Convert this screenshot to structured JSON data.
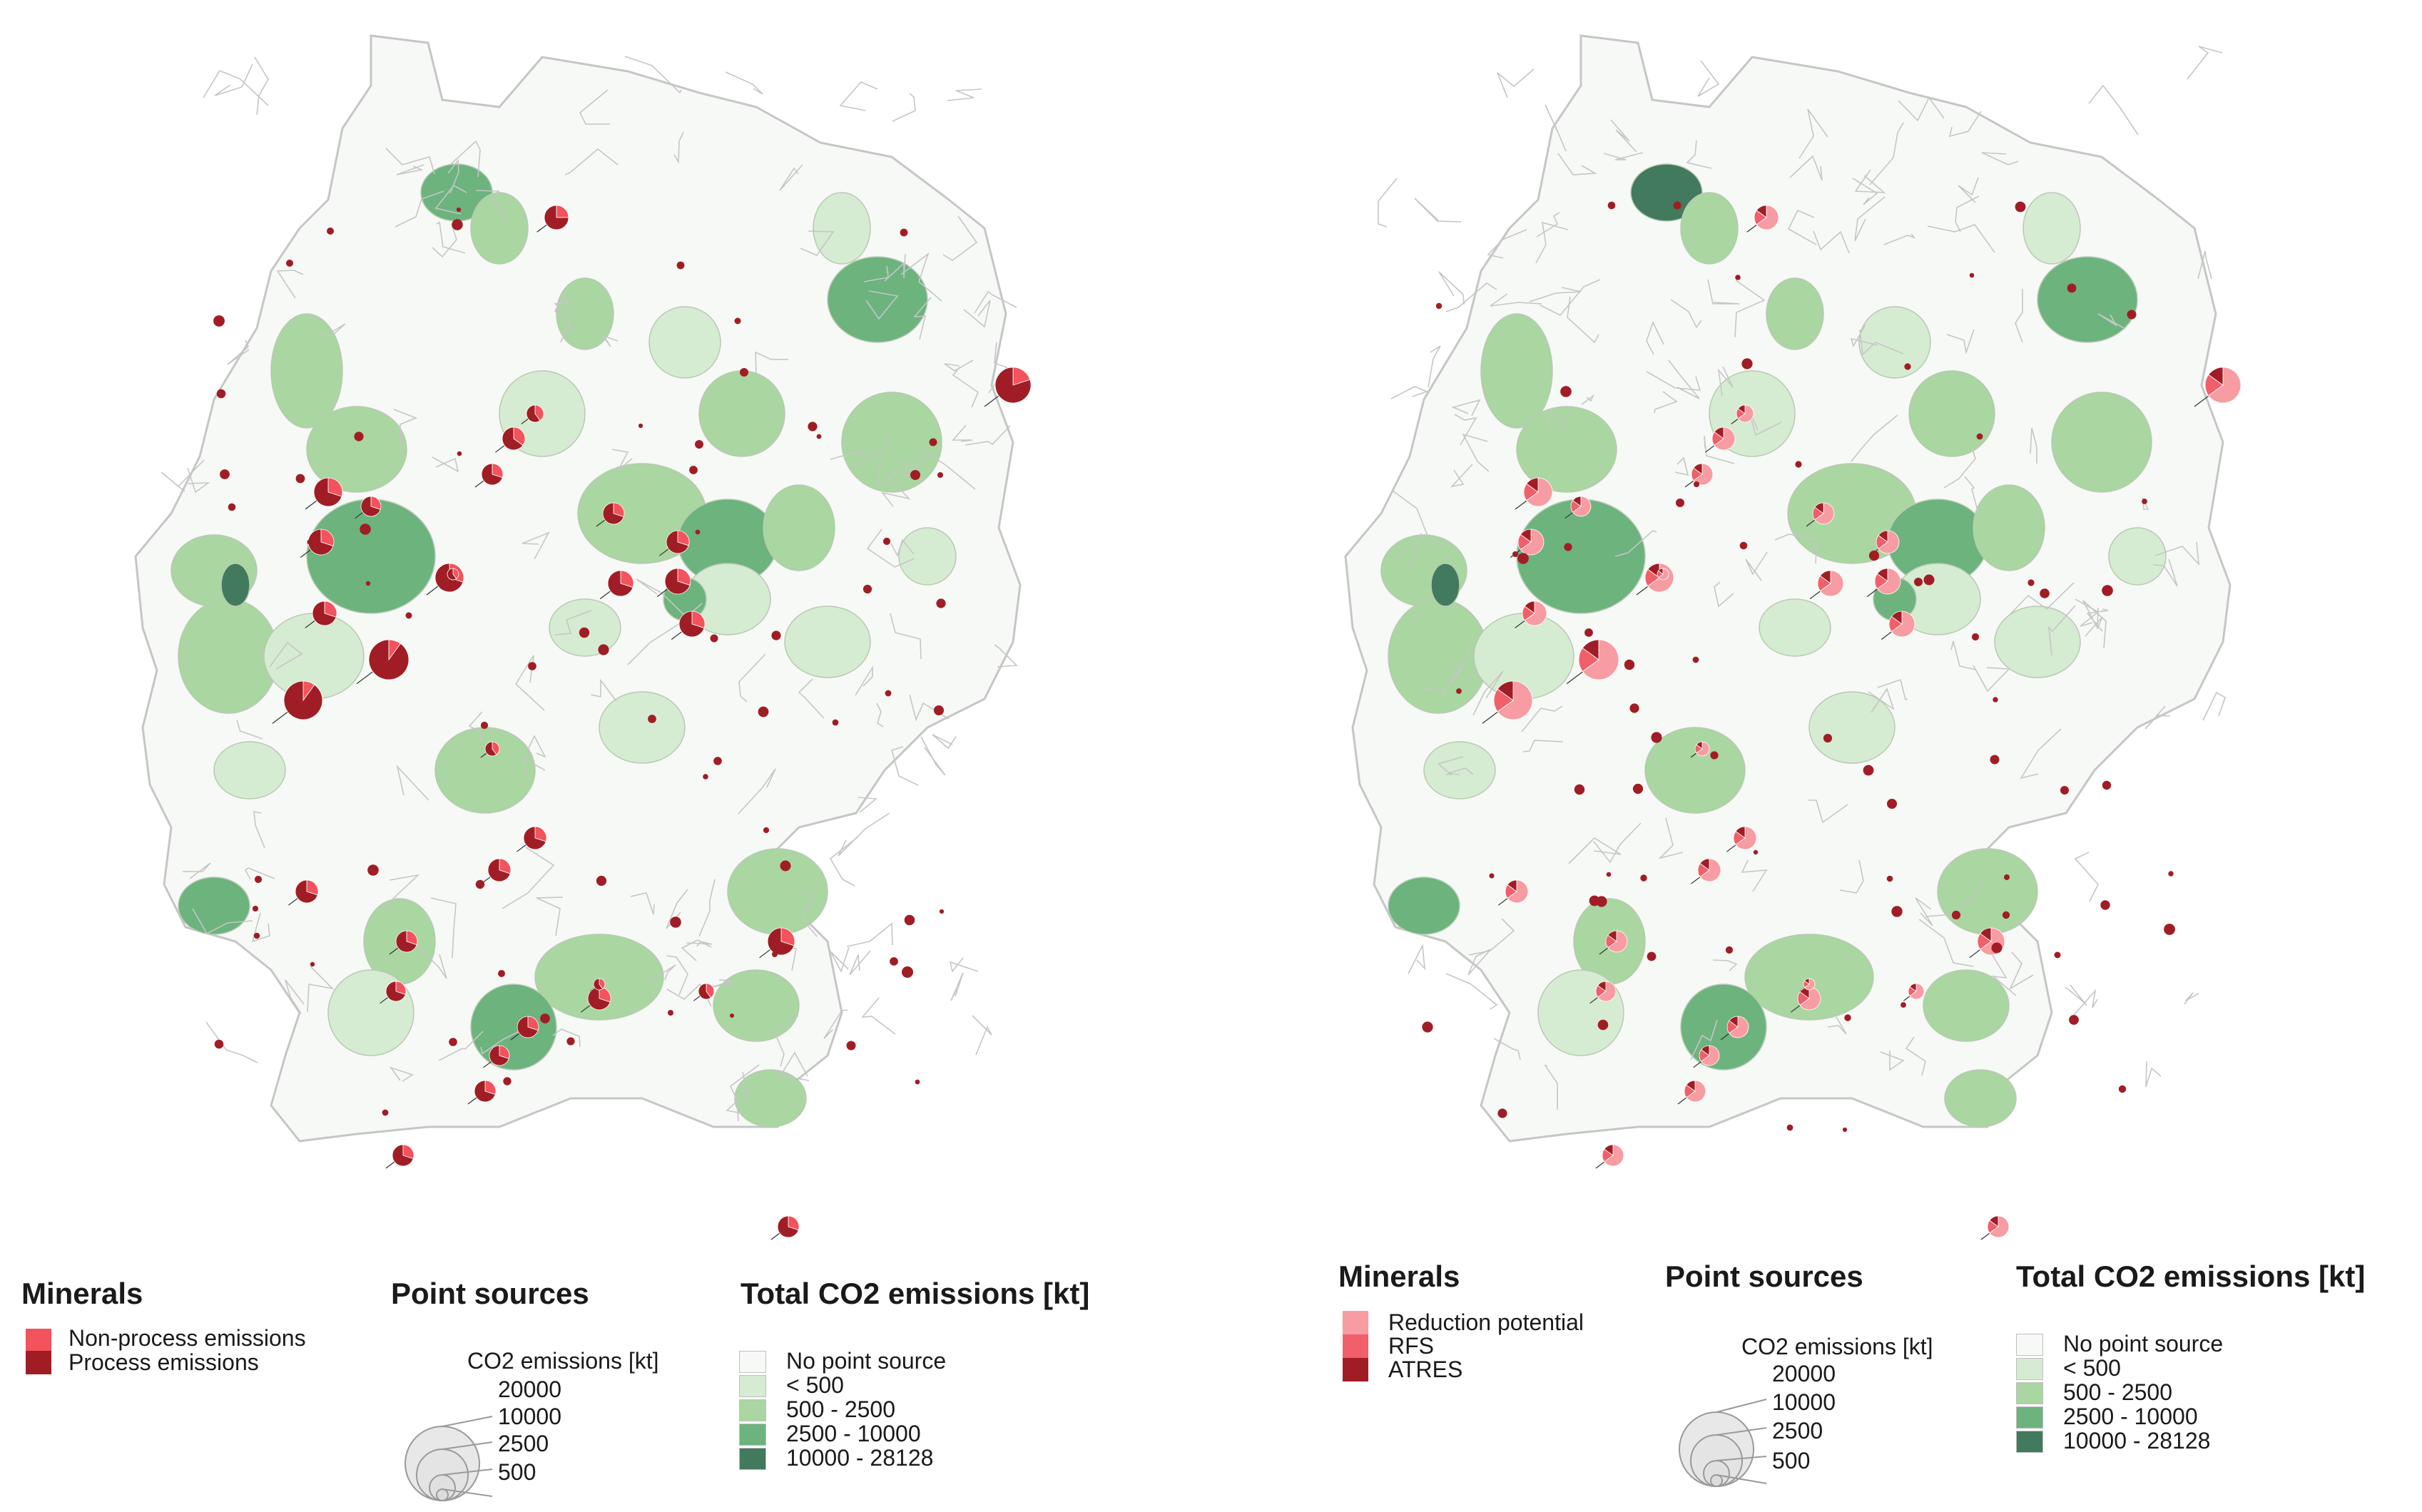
{
  "colors": {
    "no_point_source": "#f7f9f6",
    "lt_500": "#d6ecd2",
    "c500_2500": "#a9d6a1",
    "c2500_10000": "#6cb37e",
    "c10000_28128": "#417a5c",
    "non_process": "#f2535d",
    "process": "#a11d25",
    "reduction_potential": "#f79ca2",
    "rfs": "#f05f6a",
    "atres": "#a11d25",
    "border": "#c6c6c6",
    "bubble_fill": "#e8e8e8",
    "bubble_stroke": "#9a9a9a"
  },
  "left_legend": {
    "minerals_title": "Minerals",
    "minerals_items": [
      {
        "label": "Non-process emissions",
        "color": "#f2535d"
      },
      {
        "label": "Process emissions",
        "color": "#a11d25"
      }
    ],
    "point_sources_title": "Point sources",
    "bubble_caption": "CO2 emissions [kt]",
    "bubble_values": [
      "20000",
      "10000",
      "2500",
      "500"
    ],
    "total_title": "Total CO2 emissions [kt]",
    "classes": [
      {
        "label": "No point source",
        "color": "#f7f9f6"
      },
      {
        "label": "< 500",
        "color": "#d6ecd2"
      },
      {
        "label": "500 - 2500",
        "color": "#a9d6a1"
      },
      {
        "label": "2500 - 10000",
        "color": "#6cb37e"
      },
      {
        "label": "10000 - 28128",
        "color": "#417a5c"
      }
    ]
  },
  "right_legend": {
    "minerals_title": "Minerals",
    "minerals_items": [
      {
        "label": "Reduction potential",
        "color": "#f79ca2"
      },
      {
        "label": "RFS",
        "color": "#f05f6a"
      },
      {
        "label": "ATRES",
        "color": "#a11d25"
      }
    ],
    "point_sources_title": "Point sources",
    "bubble_caption": "CO2 emissions [kt]",
    "bubble_values": [
      "20000",
      "10000",
      "2500",
      "500"
    ],
    "total_title": "Total CO2 emissions [kt]",
    "classes": [
      {
        "label": "No point source",
        "color": "#f7f9f6"
      },
      {
        "label": "< 500",
        "color": "#d6ecd2"
      },
      {
        "label": "500 - 2500",
        "color": "#a9d6a1"
      },
      {
        "label": "2500 - 10000",
        "color": "#6cb37e"
      },
      {
        "label": "10000 - 28128",
        "color": "#417a5c"
      }
    ]
  }
}
